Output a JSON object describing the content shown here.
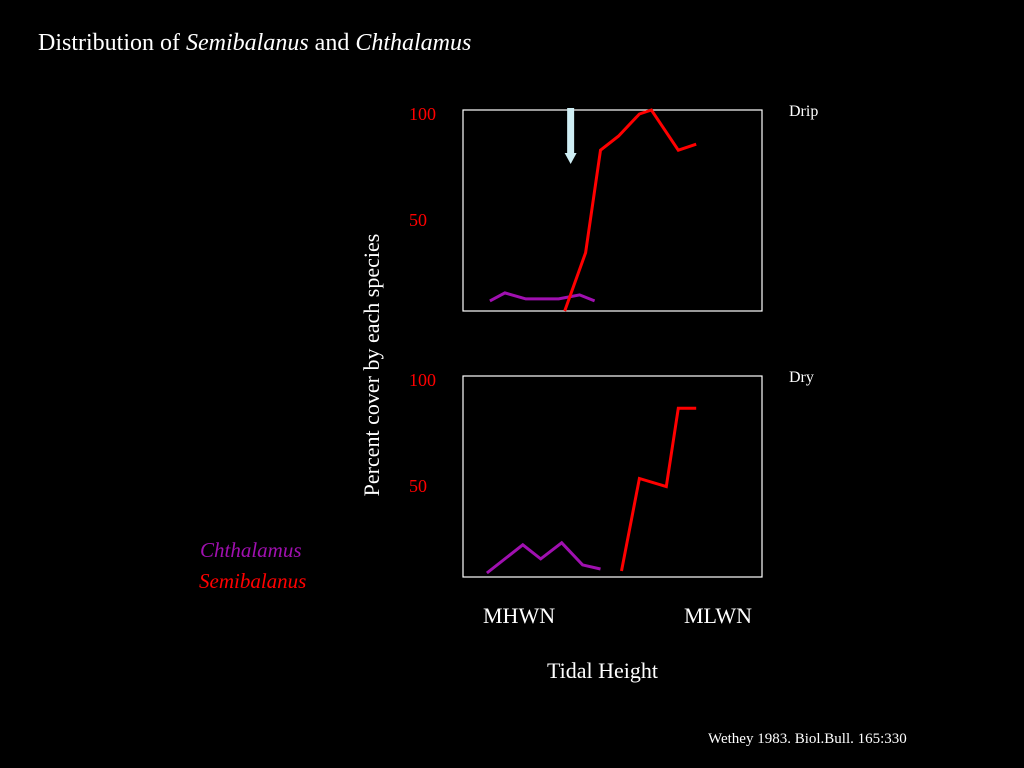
{
  "title": {
    "text": "Distribution of ",
    "sp1": "Semibalanus",
    "mid": " and ",
    "sp2": "Chthalamus"
  },
  "citation": "Wethey 1983. Biol.Bull. 165:330",
  "legend": [
    {
      "name": "Chthalamus",
      "color": "#a010b0"
    },
    {
      "name": "Semibalanus",
      "color": "#ff0000"
    }
  ],
  "colors": {
    "background": "#000000",
    "axis_tick": "#ff0000",
    "arrow": "#cfeef4"
  },
  "chart_data": {
    "type": "line",
    "ylabel": "Percent cover by each species",
    "xlabel": "Tidal Height",
    "x_ticks": [
      "MHWN",
      "MLWN"
    ],
    "x_range": [
      0,
      10
    ],
    "panels": [
      {
        "condition": "Drip",
        "y_ticks": [
          "100",
          "50"
        ],
        "ylim": [
          0,
          100
        ],
        "arrow_x": 3.6,
        "series": [
          {
            "name": "Chthalamus",
            "color": "#a010b0",
            "points": [
              [
                0.9,
                5
              ],
              [
                1.4,
                9
              ],
              [
                2.1,
                6
              ],
              [
                2.9,
                6
              ],
              [
                3.2,
                6
              ],
              [
                3.9,
                8
              ],
              [
                4.4,
                5
              ]
            ]
          },
          {
            "name": "Semibalanus",
            "color": "#ff0000",
            "points": [
              [
                3.4,
                0
              ],
              [
                4.1,
                29
              ],
              [
                4.6,
                80
              ],
              [
                5.2,
                87
              ],
              [
                5.9,
                98
              ],
              [
                6.3,
                100
              ],
              [
                7.2,
                80
              ],
              [
                7.8,
                83
              ]
            ]
          }
        ]
      },
      {
        "condition": "Dry",
        "y_ticks": [
          "100",
          "50"
        ],
        "ylim": [
          0,
          100
        ],
        "series": [
          {
            "name": "Chthalamus",
            "color": "#a010b0",
            "points": [
              [
                0.8,
                2
              ],
              [
                2.0,
                16
              ],
              [
                2.6,
                9
              ],
              [
                3.3,
                17
              ],
              [
                4.0,
                6
              ],
              [
                4.6,
                4
              ]
            ]
          },
          {
            "name": "Semibalanus",
            "color": "#ff0000",
            "points": [
              [
                5.3,
                3
              ],
              [
                5.9,
                49
              ],
              [
                6.8,
                45
              ],
              [
                7.2,
                84
              ],
              [
                7.8,
                84
              ]
            ]
          }
        ]
      }
    ]
  }
}
